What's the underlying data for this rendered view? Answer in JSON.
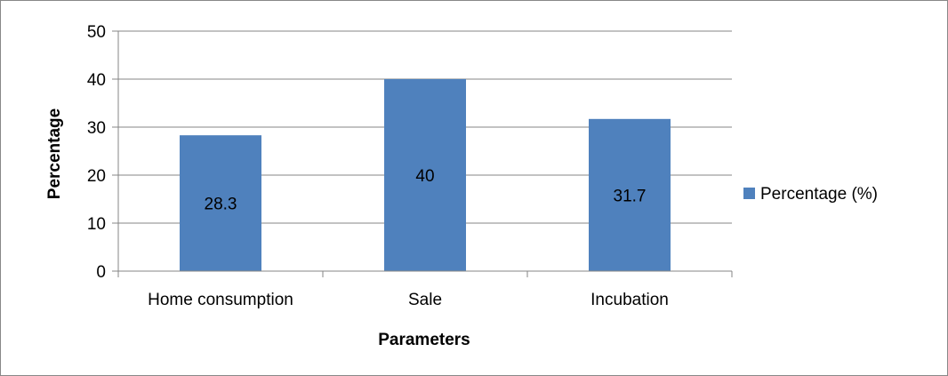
{
  "chart_data": {
    "type": "bar",
    "categories": [
      "Home consumption",
      "Sale",
      "Incubation"
    ],
    "series": [
      {
        "name": "Percentage (%)",
        "values": [
          28.3,
          40,
          31.7
        ],
        "color": "#4F81BD"
      }
    ],
    "data_labels": [
      "28.3",
      "40",
      "31.7"
    ],
    "xlabel": "Parameters",
    "ylabel": "Percentage",
    "ylim": [
      0,
      50
    ],
    "yticks": [
      0,
      10,
      20,
      30,
      40,
      50
    ],
    "grid": true,
    "legend_position": "right"
  }
}
